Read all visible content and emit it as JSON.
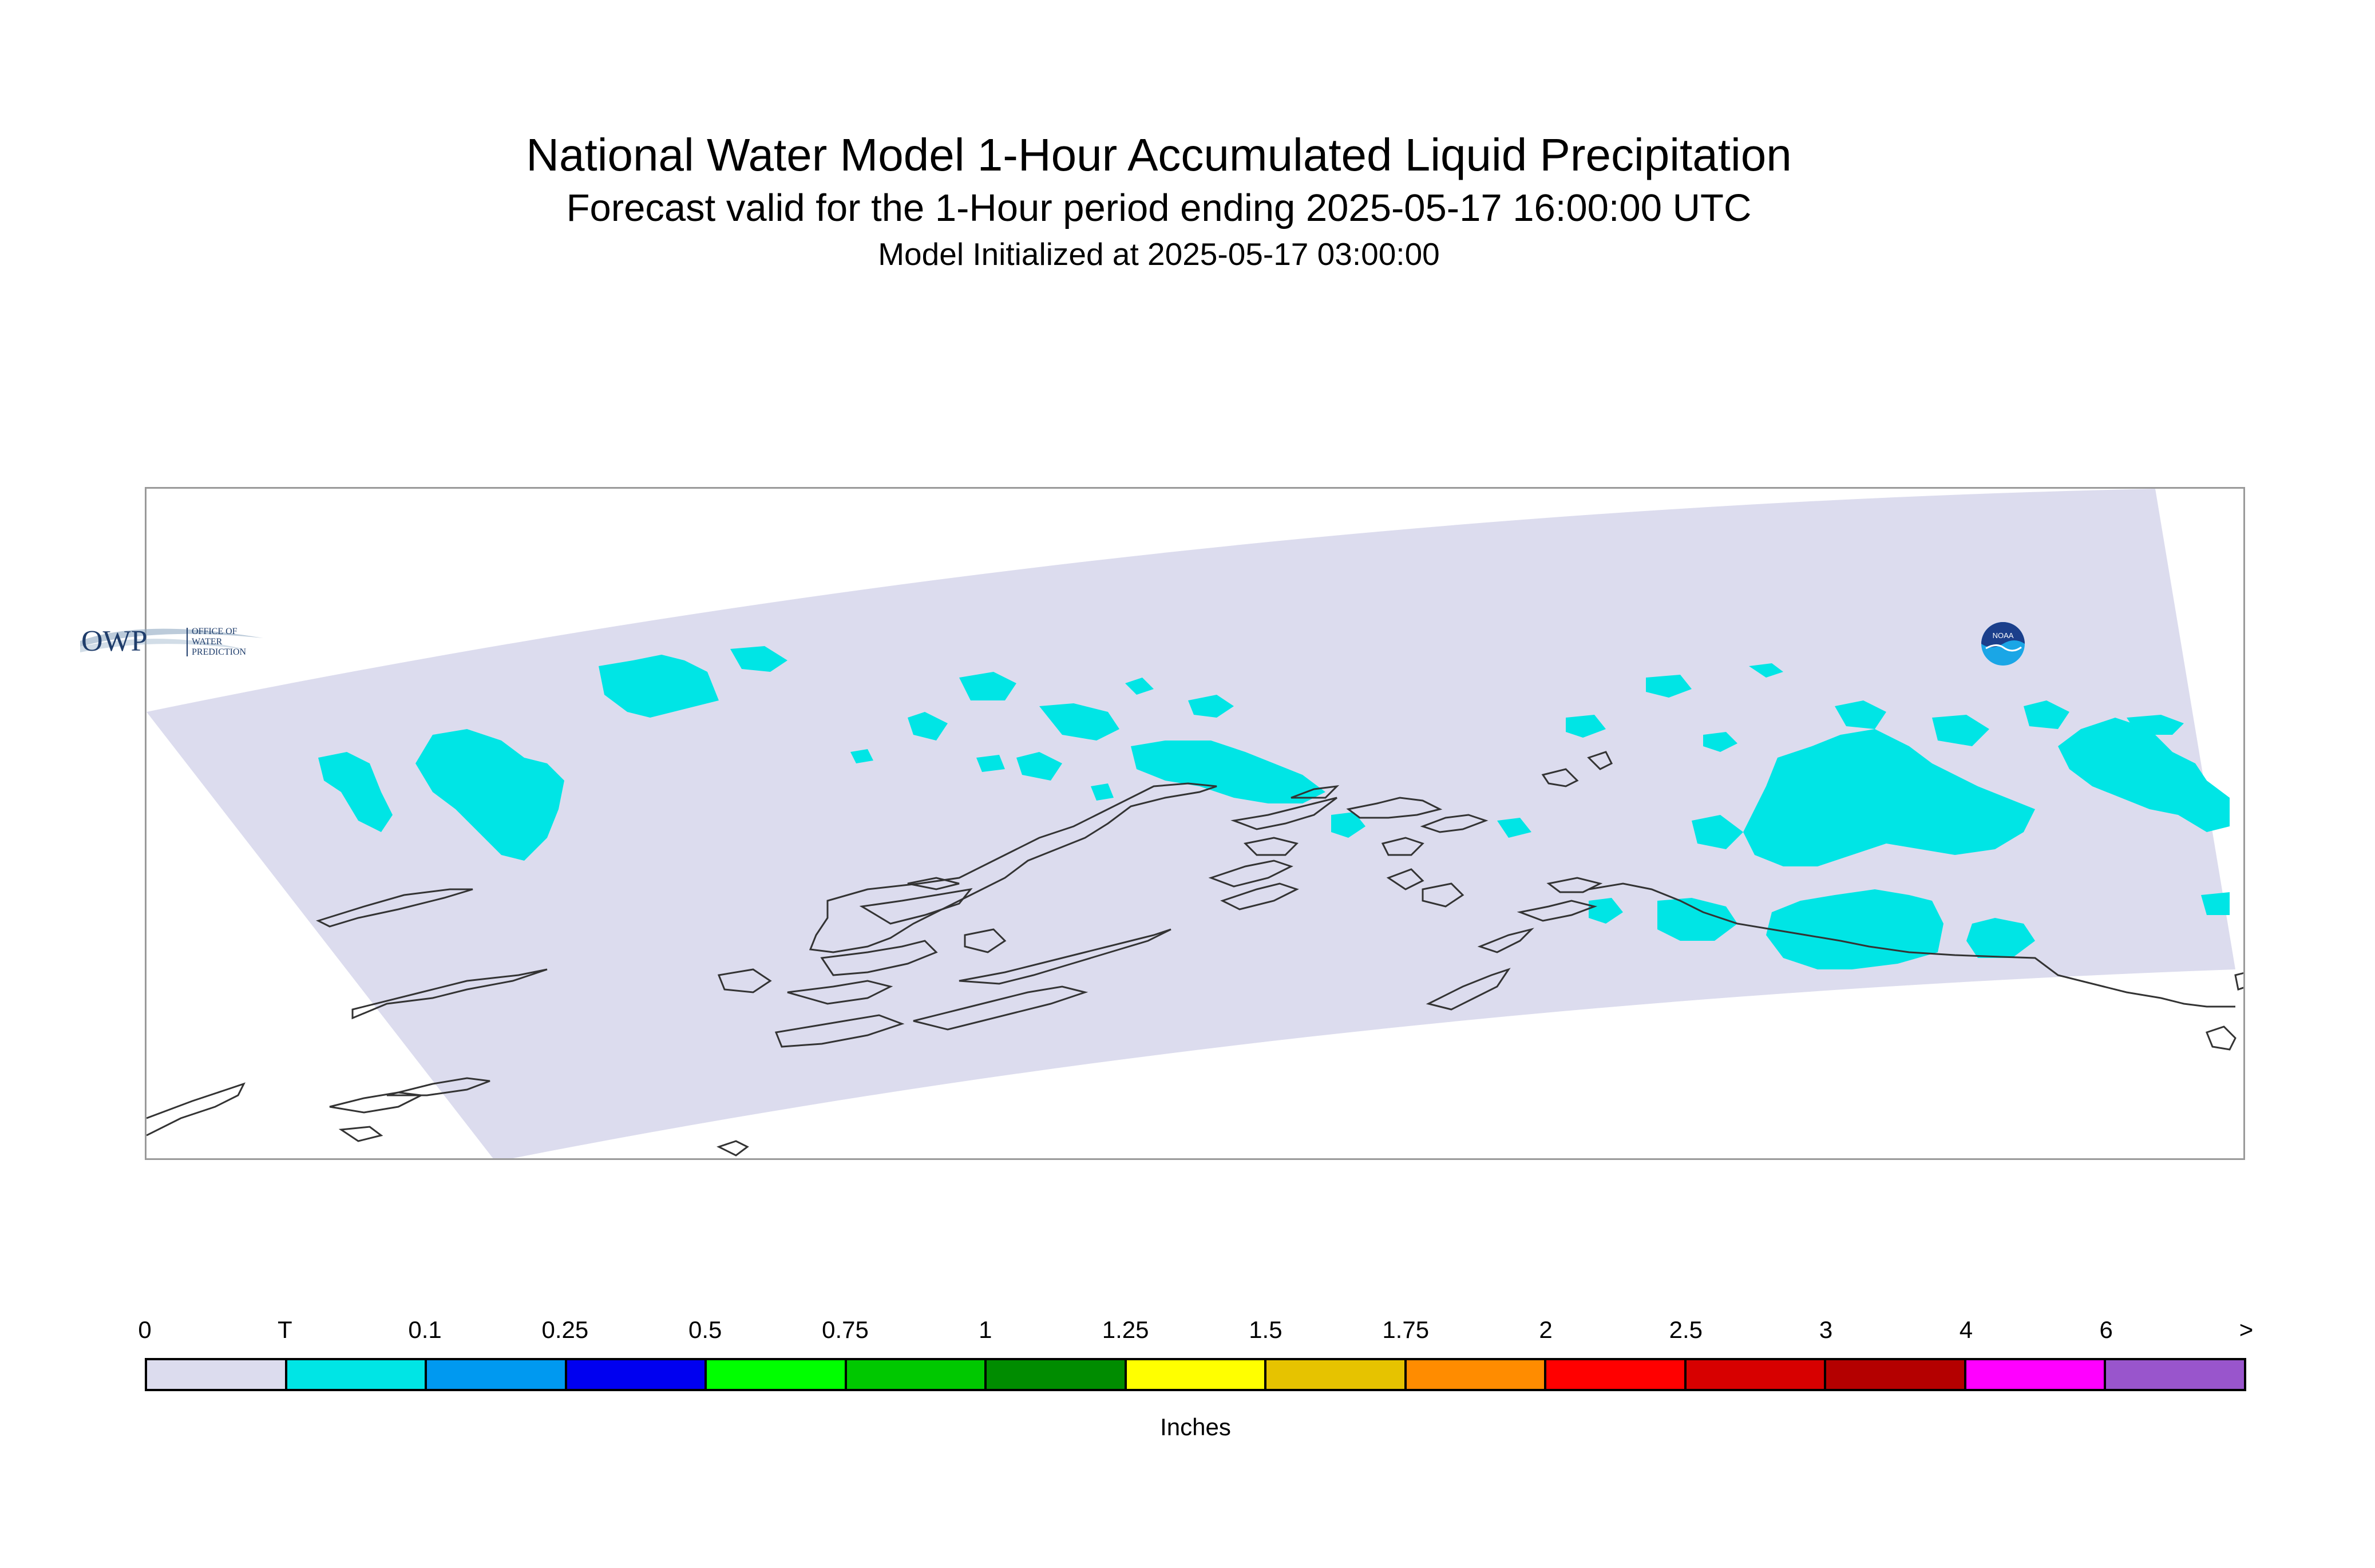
{
  "title": "National Water Model 1-Hour Accumulated Liquid Precipitation",
  "subtitle": "Forecast valid for the 1-Hour period ending 2025-05-17 16:00:00 UTC",
  "init": "Model Initialized at 2025-05-17 03:00:00",
  "logos": {
    "owp_abbrev": "OWP",
    "owp_name_lines": [
      "OFFICE OF",
      "WATER",
      "PREDICTION"
    ],
    "noaa": "NOAA"
  },
  "legend": {
    "ticks": [
      "0",
      "T",
      "0.1",
      "0.25",
      "0.5",
      "0.75",
      "1",
      "1.25",
      "1.5",
      "1.75",
      "2",
      "2.5",
      "3",
      "4",
      "6",
      ">"
    ],
    "colors": [
      "#dcdcee",
      "#00e5e5",
      "#0099f0",
      "#0000f0",
      "#00ff00",
      "#00c800",
      "#008c00",
      "#ffff00",
      "#e6c300",
      "#ff8c00",
      "#ff0000",
      "#d70000",
      "#b40000",
      "#ff00ff",
      "#9955cc"
    ],
    "units": "Inches"
  },
  "colors": {
    "domain_fill": "#dcdcee",
    "trace_fill": "#00e5e5",
    "coastline": "#333333",
    "map_border": "#9a9a9a"
  }
}
